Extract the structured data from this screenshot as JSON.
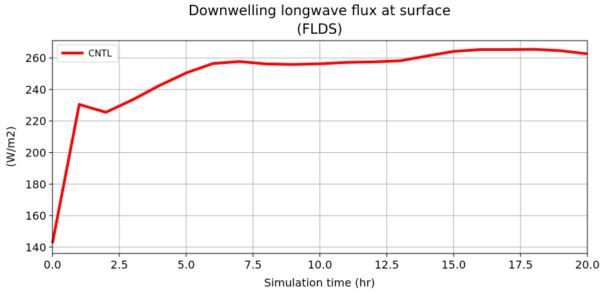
{
  "chart_data": {
    "type": "line",
    "title": "Downwelling longwave flux at surface",
    "subtitle": "(FLDS)",
    "xlabel": "Simulation time (hr)",
    "ylabel": "(W/m2)",
    "xlim": [
      0,
      20
    ],
    "ylim": [
      136,
      271
    ],
    "xticks": [
      "0.0",
      "2.5",
      "5.0",
      "7.5",
      "10.0",
      "12.5",
      "15.0",
      "17.5",
      "20.0"
    ],
    "yticks": [
      "140",
      "160",
      "180",
      "200",
      "220",
      "240",
      "260"
    ],
    "grid": true,
    "legend_position": "top-left",
    "series": [
      {
        "name": "CNTL",
        "color": "#ff0000",
        "x": [
          0,
          1,
          2,
          3,
          4,
          5,
          6,
          7,
          8,
          9,
          10,
          11,
          12,
          13,
          14,
          15,
          16,
          17,
          18,
          19,
          20
        ],
        "y": [
          142.5,
          230.5,
          225.5,
          233.5,
          242.5,
          250.5,
          256.5,
          257.7,
          256.2,
          255.9,
          256.3,
          257.2,
          257.5,
          258.2,
          261.2,
          264.2,
          265.3,
          265.3,
          265.5,
          264.6,
          262.6
        ]
      }
    ]
  }
}
